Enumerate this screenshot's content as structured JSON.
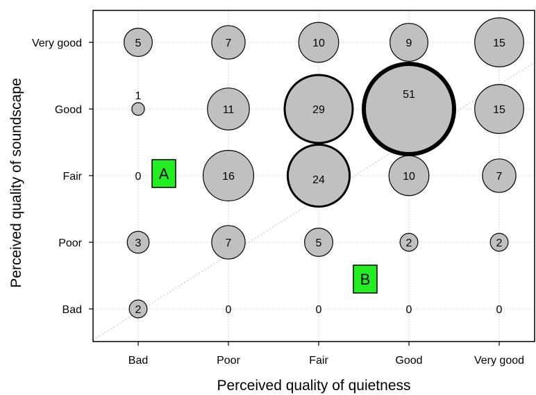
{
  "chart_data": {
    "type": "scatter",
    "subtype": "bubble",
    "xlabel": "Perceived quality of quietness",
    "ylabel": "Perceived quality of soundscape",
    "x_categories": [
      "Bad",
      "Poor",
      "Fair",
      "Good",
      "Very good"
    ],
    "y_categories": [
      "Bad",
      "Poor",
      "Fair",
      "Good",
      "Very good"
    ],
    "grid": true,
    "diagonal_reference_line": true,
    "bubble_fill": "#c0c0c0",
    "bubble_stroke": "#000000",
    "points": [
      {
        "x": "Bad",
        "y": "Very good",
        "count": 5
      },
      {
        "x": "Poor",
        "y": "Very good",
        "count": 7
      },
      {
        "x": "Fair",
        "y": "Very good",
        "count": 10
      },
      {
        "x": "Good",
        "y": "Very good",
        "count": 9
      },
      {
        "x": "Very good",
        "y": "Very good",
        "count": 15
      },
      {
        "x": "Bad",
        "y": "Good",
        "count": 1
      },
      {
        "x": "Poor",
        "y": "Good",
        "count": 11
      },
      {
        "x": "Fair",
        "y": "Good",
        "count": 29
      },
      {
        "x": "Good",
        "y": "Good",
        "count": 51
      },
      {
        "x": "Very good",
        "y": "Good",
        "count": 15
      },
      {
        "x": "Bad",
        "y": "Fair",
        "count": 0
      },
      {
        "x": "Poor",
        "y": "Fair",
        "count": 16
      },
      {
        "x": "Fair",
        "y": "Fair",
        "count": 24
      },
      {
        "x": "Good",
        "y": "Fair",
        "count": 10
      },
      {
        "x": "Very good",
        "y": "Fair",
        "count": 7
      },
      {
        "x": "Bad",
        "y": "Poor",
        "count": 3
      },
      {
        "x": "Poor",
        "y": "Poor",
        "count": 7
      },
      {
        "x": "Fair",
        "y": "Poor",
        "count": 5
      },
      {
        "x": "Good",
        "y": "Poor",
        "count": 2
      },
      {
        "x": "Very good",
        "y": "Poor",
        "count": 2
      },
      {
        "x": "Bad",
        "y": "Bad",
        "count": 2
      },
      {
        "x": "Poor",
        "y": "Bad",
        "count": 0
      },
      {
        "x": "Fair",
        "y": "Bad",
        "count": 0
      },
      {
        "x": "Good",
        "y": "Bad",
        "count": 0
      },
      {
        "x": "Very good",
        "y": "Bad",
        "count": 0
      }
    ],
    "annotations": [
      {
        "text": "A",
        "x": "Bad-Poor",
        "y": "Fair",
        "fill": "#22ee22"
      },
      {
        "text": "B",
        "x": "Fair-Good",
        "y": "Poor-Bad",
        "fill": "#22ee22"
      }
    ]
  }
}
